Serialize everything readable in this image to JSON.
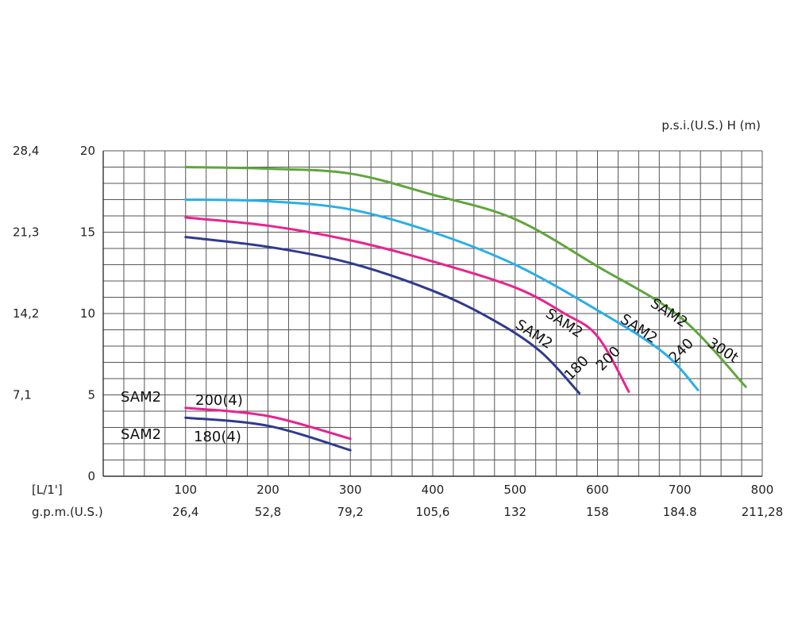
{
  "chart_data": {
    "type": "line",
    "x_unit_label": "[L/1']",
    "x2_unit_label": "g.p.m.(U.S.)",
    "y_unit_label": "p.s.i.(U.S.)   H  (m)",
    "xlim": [
      0,
      800
    ],
    "ylim": [
      0,
      20
    ],
    "grid": true,
    "x_ticks": [
      {
        "value": 100,
        "label": "100",
        "label2": "26,4"
      },
      {
        "value": 200,
        "label": "200",
        "label2": "52,8"
      },
      {
        "value": 300,
        "label": "300",
        "label2": "79,2"
      },
      {
        "value": 400,
        "label": "400",
        "label2": "105,6"
      },
      {
        "value": 500,
        "label": "500",
        "label2": "132"
      },
      {
        "value": 600,
        "label": "600",
        "label2": "158"
      },
      {
        "value": 700,
        "label": "700",
        "label2": "184.8"
      },
      {
        "value": 800,
        "label": "800",
        "label2": "211,28"
      }
    ],
    "y_ticks": [
      {
        "value": 0,
        "label": "0",
        "label_psi": ""
      },
      {
        "value": 5,
        "label": "5",
        "label_psi": "7,1"
      },
      {
        "value": 10,
        "label": "10",
        "label_psi": "14,2"
      },
      {
        "value": 15,
        "label": "15",
        "label_psi": "21,3"
      },
      {
        "value": 20,
        "label": "20",
        "label_psi": "28,4"
      }
    ],
    "series": [
      {
        "name": "SAM2 300t",
        "label_parts": [
          "SAM2",
          "300t"
        ],
        "color": "#5fa63c",
        "points": [
          [
            100,
            19
          ],
          [
            200,
            18.9
          ],
          [
            300,
            18.6
          ],
          [
            400,
            17.3
          ],
          [
            500,
            15.8
          ],
          [
            600,
            12.9
          ],
          [
            700,
            9.8
          ],
          [
            780,
            5.5
          ]
        ]
      },
      {
        "name": "SAM2 240",
        "label_parts": [
          "SAM2",
          "240"
        ],
        "color": "#29aee8",
        "points": [
          [
            100,
            17
          ],
          [
            200,
            16.9
          ],
          [
            300,
            16.4
          ],
          [
            400,
            15
          ],
          [
            500,
            13
          ],
          [
            600,
            10.2
          ],
          [
            680,
            7.6
          ],
          [
            722,
            5.3
          ]
        ]
      },
      {
        "name": "SAM2 200",
        "label_parts": [
          "SAM2",
          "200"
        ],
        "color": "#e8238f",
        "points": [
          [
            100,
            15.9
          ],
          [
            200,
            15.4
          ],
          [
            300,
            14.5
          ],
          [
            400,
            13.2
          ],
          [
            500,
            11.6
          ],
          [
            560,
            10
          ],
          [
            600,
            8.6
          ],
          [
            638,
            5.2
          ]
        ]
      },
      {
        "name": "SAM2 180",
        "label_parts": [
          "SAM2",
          "180"
        ],
        "color": "#2f3a8f",
        "points": [
          [
            100,
            14.7
          ],
          [
            200,
            14.1
          ],
          [
            300,
            13.1
          ],
          [
            400,
            11.4
          ],
          [
            470,
            9.7
          ],
          [
            530,
            7.7
          ],
          [
            578,
            5.1
          ]
        ]
      },
      {
        "name": "SAM2 200(4)",
        "label_parts": [
          "SAM2",
          "200(4)"
        ],
        "color": "#e8238f",
        "points": [
          [
            100,
            4.2
          ],
          [
            200,
            3.7
          ],
          [
            300,
            2.3
          ]
        ]
      },
      {
        "name": "SAM2 180(4)",
        "label_parts": [
          "SAM2",
          "180(4)"
        ],
        "color": "#2f3a8f",
        "points": [
          [
            100,
            3.6
          ],
          [
            200,
            3.1
          ],
          [
            300,
            1.6
          ]
        ]
      }
    ]
  }
}
